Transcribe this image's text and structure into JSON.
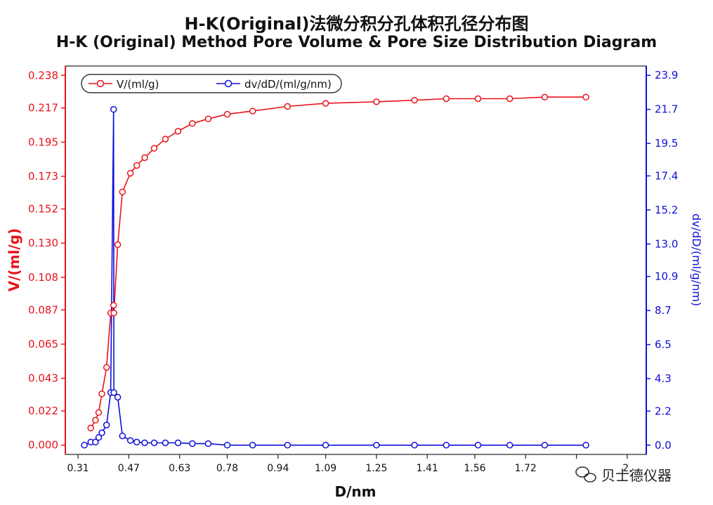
{
  "titles": {
    "line1": "H-K(Original)法微分积分孔体积孔径分布图",
    "line2": "H-K (Original) Method Pore Volume & Pore Size Distribution Diagram"
  },
  "watermark": "贝士德仪器",
  "chart_data": {
    "type": "line",
    "xlabel": "D/nm",
    "ylabel_left": "V/(ml/g)",
    "ylabel_right": "dv/dD/(ml/g/nm)",
    "x_ticks": [
      "0.31",
      "0.47",
      "0.63",
      "0.78",
      "0.94",
      "1.09",
      "1.25",
      "1.41",
      "1.56",
      "1.72",
      "1.88",
      "2.04"
    ],
    "x_tick_labels": [
      "0.31",
      "0.47",
      "0.63",
      "0.78",
      "0.94",
      "1.09",
      "1.25",
      "1.41",
      "1.56",
      "1.72",
      "",
      "2."
    ],
    "xlim": [
      0.27,
      2.1
    ],
    "y_left_ticks": [
      "0.000",
      "0.022",
      "0.043",
      "0.065",
      "0.087",
      "0.108",
      "0.130",
      "0.152",
      "0.173",
      "0.195",
      "0.217",
      "0.238"
    ],
    "ylim_left": [
      -0.006,
      0.244
    ],
    "y_right_ticks": [
      "0.0",
      "2.2",
      "4.3",
      "6.5",
      "8.7",
      "10.9",
      "13.0",
      "15.2",
      "17.4",
      "19.5",
      "21.7",
      "23.9"
    ],
    "ylim_right": [
      -0.6,
      24.5
    ],
    "colors": {
      "left": "#e8141b",
      "right": "#1010d8"
    },
    "legend_position": "top-left",
    "series": [
      {
        "name": "V/(ml/g)",
        "axis": "left",
        "color": "#e8141b",
        "x": [
          0.35,
          0.365,
          0.375,
          0.385,
          0.4,
          0.413,
          0.422,
          0.423,
          0.435,
          0.45,
          0.475,
          0.495,
          0.52,
          0.55,
          0.585,
          0.625,
          0.67,
          0.72,
          0.78,
          0.86,
          0.97,
          1.09,
          1.25,
          1.37,
          1.47,
          1.57,
          1.67,
          1.78,
          1.91
        ],
        "y": [
          0.011,
          0.016,
          0.021,
          0.033,
          0.05,
          0.085,
          0.09,
          0.085,
          0.129,
          0.163,
          0.175,
          0.18,
          0.185,
          0.191,
          0.197,
          0.202,
          0.207,
          0.21,
          0.213,
          0.215,
          0.218,
          0.22,
          0.221,
          0.222,
          0.223,
          0.223,
          0.223,
          0.224,
          0.224
        ]
      },
      {
        "name": "dv/dD/(ml/g/nm)",
        "axis": "right",
        "color": "#1010d8",
        "x": [
          0.33,
          0.35,
          0.365,
          0.375,
          0.385,
          0.4,
          0.413,
          0.422,
          0.423,
          0.435,
          0.45,
          0.475,
          0.495,
          0.52,
          0.55,
          0.585,
          0.625,
          0.67,
          0.72,
          0.78,
          0.86,
          0.97,
          1.09,
          1.25,
          1.37,
          1.47,
          1.57,
          1.67,
          1.78,
          1.91
        ],
        "y": [
          0.0,
          0.2,
          0.2,
          0.5,
          0.8,
          1.3,
          3.4,
          21.7,
          3.4,
          3.1,
          0.6,
          0.3,
          0.2,
          0.15,
          0.15,
          0.15,
          0.15,
          0.1,
          0.1,
          0.0,
          0.0,
          0.0,
          0.0,
          0.0,
          0.0,
          0.0,
          0.0,
          0.0,
          0.0,
          0.0
        ]
      }
    ]
  }
}
